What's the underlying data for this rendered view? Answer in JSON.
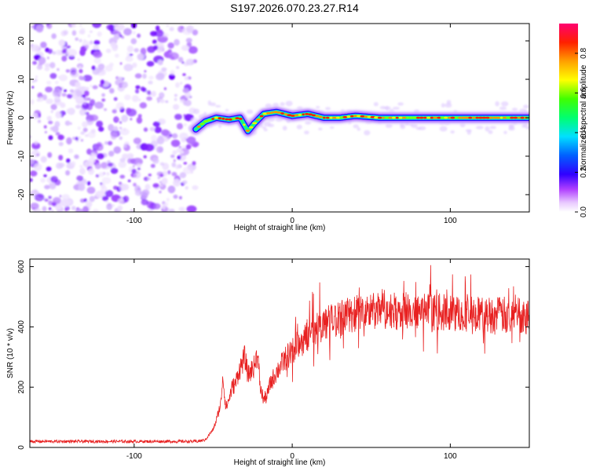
{
  "title": "S197.2026.070.23.27.R14",
  "chart_data": [
    {
      "type": "heatmap",
      "xlabel": "Height of straight line (km)",
      "ylabel": "Frequency (Hz)",
      "xlim": [
        -166,
        150
      ],
      "ylim": [
        -24.5,
        24.5
      ],
      "xticks": [
        -100,
        0,
        100
      ],
      "yticks": [
        -20,
        -10,
        0,
        10,
        20
      ],
      "noise_region_x": [
        -166,
        -61
      ],
      "signal_start_x": -61,
      "signal_track": [
        {
          "x": -61,
          "y": -3
        },
        {
          "x": -55,
          "y": -1
        },
        {
          "x": -48,
          "y": 0
        },
        {
          "x": -40,
          "y": -0.5
        },
        {
          "x": -33,
          "y": 0
        },
        {
          "x": -28,
          "y": -3.5
        },
        {
          "x": -24,
          "y": -1.5
        },
        {
          "x": -18,
          "y": 1
        },
        {
          "x": -10,
          "y": 1.5
        },
        {
          "x": 0,
          "y": 0.5
        },
        {
          "x": 10,
          "y": 1
        },
        {
          "x": 20,
          "y": 0
        },
        {
          "x": 30,
          "y": 0
        },
        {
          "x": 40,
          "y": 0.5
        },
        {
          "x": 55,
          "y": 0
        },
        {
          "x": 70,
          "y": 0
        },
        {
          "x": 90,
          "y": 0
        },
        {
          "x": 110,
          "y": 0
        },
        {
          "x": 130,
          "y": 0
        },
        {
          "x": 150,
          "y": 0
        }
      ],
      "colorbar": {
        "label": "Normalized spectral amplitude",
        "range": [
          0,
          0.95
        ],
        "ticks": [
          0.0,
          0.2,
          0.4,
          0.6,
          0.8
        ],
        "tick_labels": [
          "0.0",
          "0.2",
          "0.4",
          "0.6",
          "0.8"
        ],
        "colormap": "rainbow-white"
      },
      "grid": false
    },
    {
      "type": "line",
      "xlabel": "Height of straight line (km)",
      "ylabel": "SNR (10 * v/v)",
      "xlim": [
        -166,
        150
      ],
      "ylim": [
        0,
        625
      ],
      "xticks": [
        -100,
        0,
        100
      ],
      "yticks": [
        0,
        200,
        400,
        600
      ],
      "series": [
        {
          "color": "#e82020",
          "x": [
            -166,
            -60,
            -55,
            -50,
            -48,
            -45,
            -44,
            -42,
            -40,
            -38,
            -36,
            -34,
            -30,
            -28,
            -24,
            -22,
            -20,
            -18,
            -16,
            -14,
            -12,
            -10,
            -5,
            0,
            5,
            10,
            15,
            20,
            25,
            30,
            40,
            50,
            60,
            70,
            80,
            90,
            100,
            110,
            120,
            130,
            140,
            150
          ],
          "y": [
            20,
            20,
            25,
            60,
            90,
            150,
            240,
            130,
            160,
            200,
            210,
            250,
            300,
            240,
            270,
            310,
            190,
            160,
            170,
            210,
            230,
            250,
            290,
            320,
            350,
            370,
            390,
            410,
            420,
            430,
            445,
            450,
            455,
            450,
            450,
            450,
            445,
            445,
            440,
            440,
            440,
            440
          ]
        }
      ],
      "grid": false
    }
  ]
}
